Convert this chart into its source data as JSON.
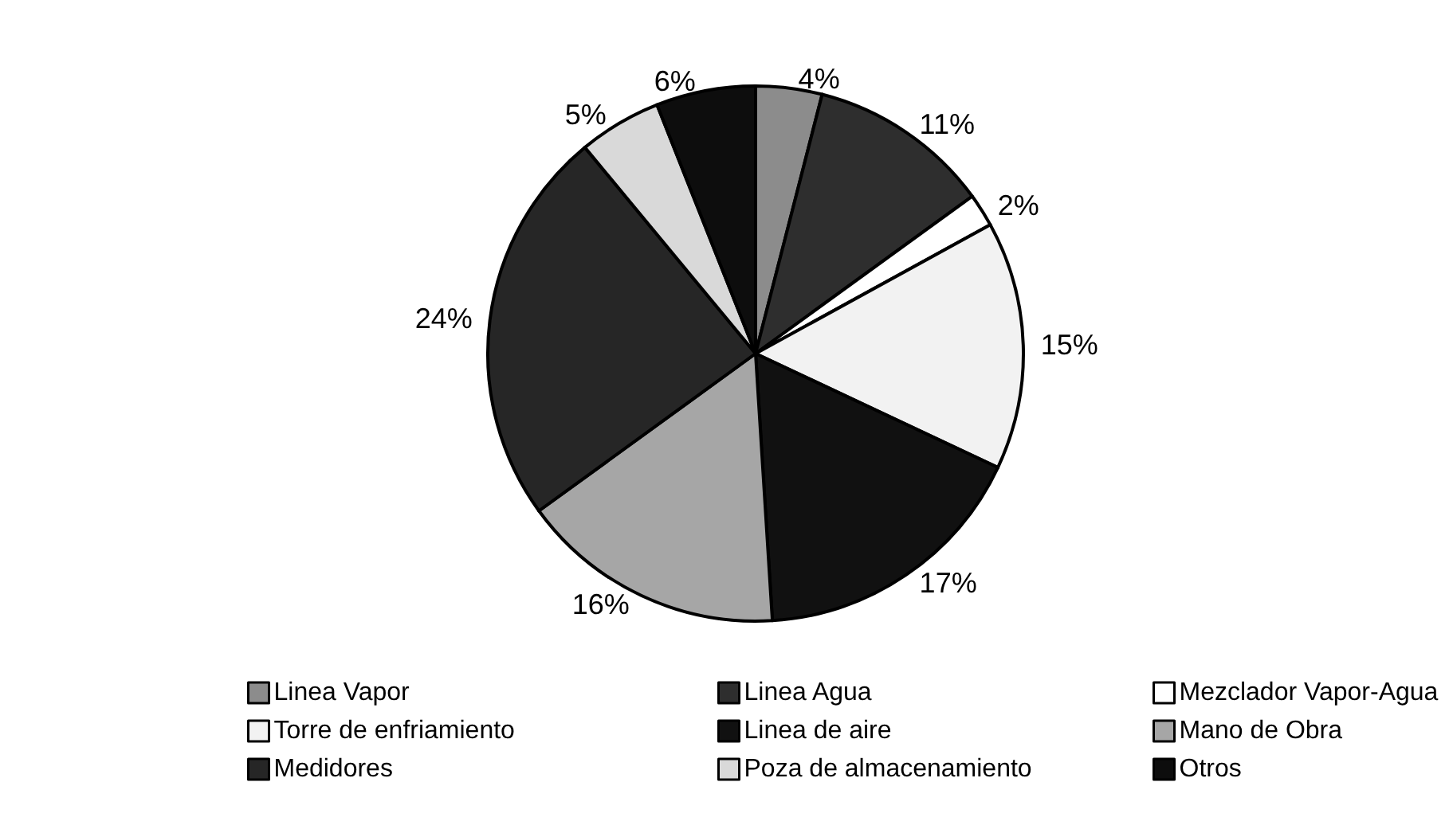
{
  "chart_data": {
    "type": "pie",
    "categories": [
      "Linea Vapor",
      "Linea Agua",
      "Mezclador Vapor-Agua",
      "Torre de enfriamiento",
      "Linea de aire",
      "Mano de Obra",
      "Medidores",
      "Poza de almacenamiento",
      "Otros"
    ],
    "values": [
      4,
      11,
      2,
      15,
      17,
      16,
      24,
      5,
      6
    ],
    "value_labels": [
      "4%",
      "11%",
      "2%",
      "15%",
      "17%",
      "16%",
      "24%",
      "5%",
      "6%"
    ],
    "colors": [
      "#8c8c8c",
      "#2e2e2e",
      "#ffffff",
      "#f2f2f2",
      "#111111",
      "#a6a6a6",
      "#262626",
      "#d9d9d9",
      "#0d0d0d"
    ],
    "legend": "bottom"
  }
}
